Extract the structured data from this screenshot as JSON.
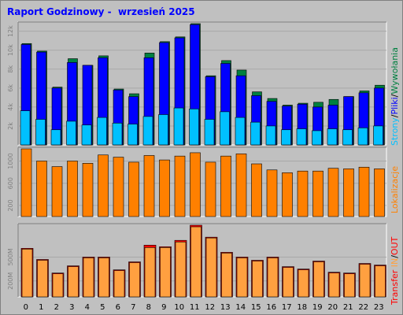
{
  "title": "Raport Godzinowy -  wrzesień 2025",
  "colors": {
    "background": "#c0c0c0",
    "plot": "#c0c0c0",
    "grid": "#a8a8a8",
    "hits": "#008040",
    "files": "#0000ff",
    "pages": "#00c0ff",
    "kbytes": "#ff8000",
    "transfer_in": "#ff0000",
    "transfer_out": "#ffa040"
  },
  "legends": {
    "top": {
      "pages": "Strony",
      "sep1": "/",
      "files": "Pliki",
      "sep2": "/",
      "hits": "Wywołania"
    },
    "middle": {
      "label": "Lokalizacje"
    },
    "bottom": {
      "transfer": "Transfer",
      "in": "IN",
      "sep": "/",
      "out": "OUT"
    }
  },
  "chart_data": [
    {
      "type": "bar",
      "categories": [
        "0",
        "1",
        "2",
        "3",
        "4",
        "5",
        "6",
        "7",
        "8",
        "9",
        "10",
        "11",
        "12",
        "13",
        "14",
        "15",
        "16",
        "17",
        "18",
        "19",
        "20",
        "21",
        "22",
        "23"
      ],
      "y_ticks": [
        "2k",
        "4k",
        "6k",
        "8k",
        "10k",
        "12k"
      ],
      "ylim": [
        0,
        12800
      ],
      "series": [
        {
          "name": "Wywołania",
          "values": [
            10700,
            9900,
            6100,
            9100,
            8400,
            9400,
            5900,
            5400,
            9700,
            10900,
            11400,
            12800,
            7300,
            8900,
            7900,
            5600,
            4900,
            4200,
            4400,
            4500,
            4800,
            5100,
            5700,
            6300
          ]
        },
        {
          "name": "Pliki",
          "values": [
            10600,
            9800,
            6000,
            8700,
            8400,
            9200,
            5800,
            5100,
            9200,
            10800,
            11300,
            12700,
            7200,
            8600,
            7300,
            5200,
            4600,
            4100,
            4300,
            4000,
            4200,
            5100,
            5500,
            6000
          ]
        },
        {
          "name": "Strony",
          "values": [
            3600,
            2700,
            1600,
            2500,
            2100,
            2900,
            2300,
            2200,
            3000,
            3200,
            3900,
            3800,
            2700,
            3500,
            2900,
            2400,
            2000,
            1600,
            1700,
            1500,
            1700,
            1600,
            1800,
            2000
          ]
        }
      ]
    },
    {
      "type": "bar",
      "categories": [
        "0",
        "1",
        "2",
        "3",
        "4",
        "5",
        "6",
        "7",
        "8",
        "9",
        "10",
        "11",
        "12",
        "13",
        "14",
        "15",
        "16",
        "17",
        "18",
        "19",
        "20",
        "21",
        "22",
        "23"
      ],
      "y_ticks": [
        "200",
        "600",
        "1000"
      ],
      "ylim": [
        0,
        1220
      ],
      "series": [
        {
          "name": "Lokalizacje",
          "values": [
            1220,
            1000,
            900,
            1000,
            960,
            1110,
            1070,
            980,
            1100,
            1020,
            1090,
            1150,
            980,
            1090,
            1130,
            950,
            840,
            790,
            820,
            820,
            870,
            860,
            890,
            860
          ]
        }
      ]
    },
    {
      "type": "bar",
      "categories": [
        "0",
        "1",
        "2",
        "3",
        "4",
        "5",
        "6",
        "7",
        "8",
        "9",
        "10",
        "11",
        "12",
        "13",
        "14",
        "15",
        "16",
        "17",
        "18",
        "19",
        "20",
        "21",
        "22",
        "23"
      ],
      "y_ticks": [
        "200M",
        "500M"
      ],
      "ylim": [
        0,
        900
      ],
      "series": [
        {
          "name": "IN",
          "values": [
            610,
            470,
            300,
            390,
            500,
            500,
            340,
            440,
            650,
            630,
            710,
            900,
            750,
            560,
            500,
            460,
            500,
            380,
            350,
            450,
            310,
            300,
            420,
            400
          ]
        },
        {
          "name": "OUT",
          "values": [
            600,
            460,
            290,
            380,
            490,
            490,
            330,
            430,
            620,
            620,
            690,
            880,
            740,
            550,
            490,
            450,
            490,
            370,
            340,
            440,
            300,
            290,
            410,
            390
          ]
        }
      ]
    }
  ]
}
